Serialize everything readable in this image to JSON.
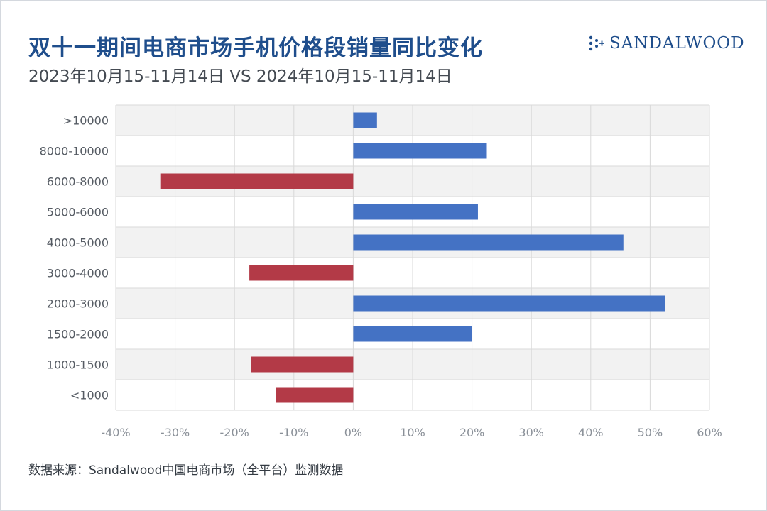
{
  "header": {
    "title": "双十一期间电商市场手机价格段销量同比变化",
    "subtitle": "2023年10月15-11月14日 VS 2024年10月15-11月14日",
    "brand": "SANDALWOOD"
  },
  "footer": {
    "source": "数据来源：Sandalwood中国电商市场（全平台）监测数据"
  },
  "colors": {
    "positive": "#4472c4",
    "negative": "#b33a47",
    "title": "#1f4e8c",
    "band": "#f2f2f2",
    "grid": "#d9d9d9"
  },
  "chart_data": {
    "type": "bar",
    "orientation": "horizontal",
    "title": "双十一期间电商市场手机价格段销量同比变化",
    "subtitle": "2023年10月15-11月14日 VS 2024年10月15-11月14日",
    "categories": [
      ">10000",
      "8000-10000",
      "6000-8000",
      "5000-6000",
      "4000-5000",
      "3000-4000",
      "2000-3000",
      "1500-2000",
      "1000-1500",
      "<1000"
    ],
    "values": [
      4,
      22.5,
      -32.5,
      21,
      45.5,
      -17.5,
      52.5,
      20,
      -17.2,
      -13
    ],
    "unit": "%",
    "xlim": [
      -40,
      60
    ],
    "xticks": [
      -40,
      -30,
      -20,
      -10,
      0,
      10,
      20,
      30,
      40,
      50,
      60
    ],
    "xtick_labels": [
      "-40%",
      "-30%",
      "-20%",
      "-10%",
      "0%",
      "10%",
      "20%",
      "30%",
      "40%",
      "50%",
      "60%"
    ],
    "grid": true,
    "legend": "none"
  }
}
